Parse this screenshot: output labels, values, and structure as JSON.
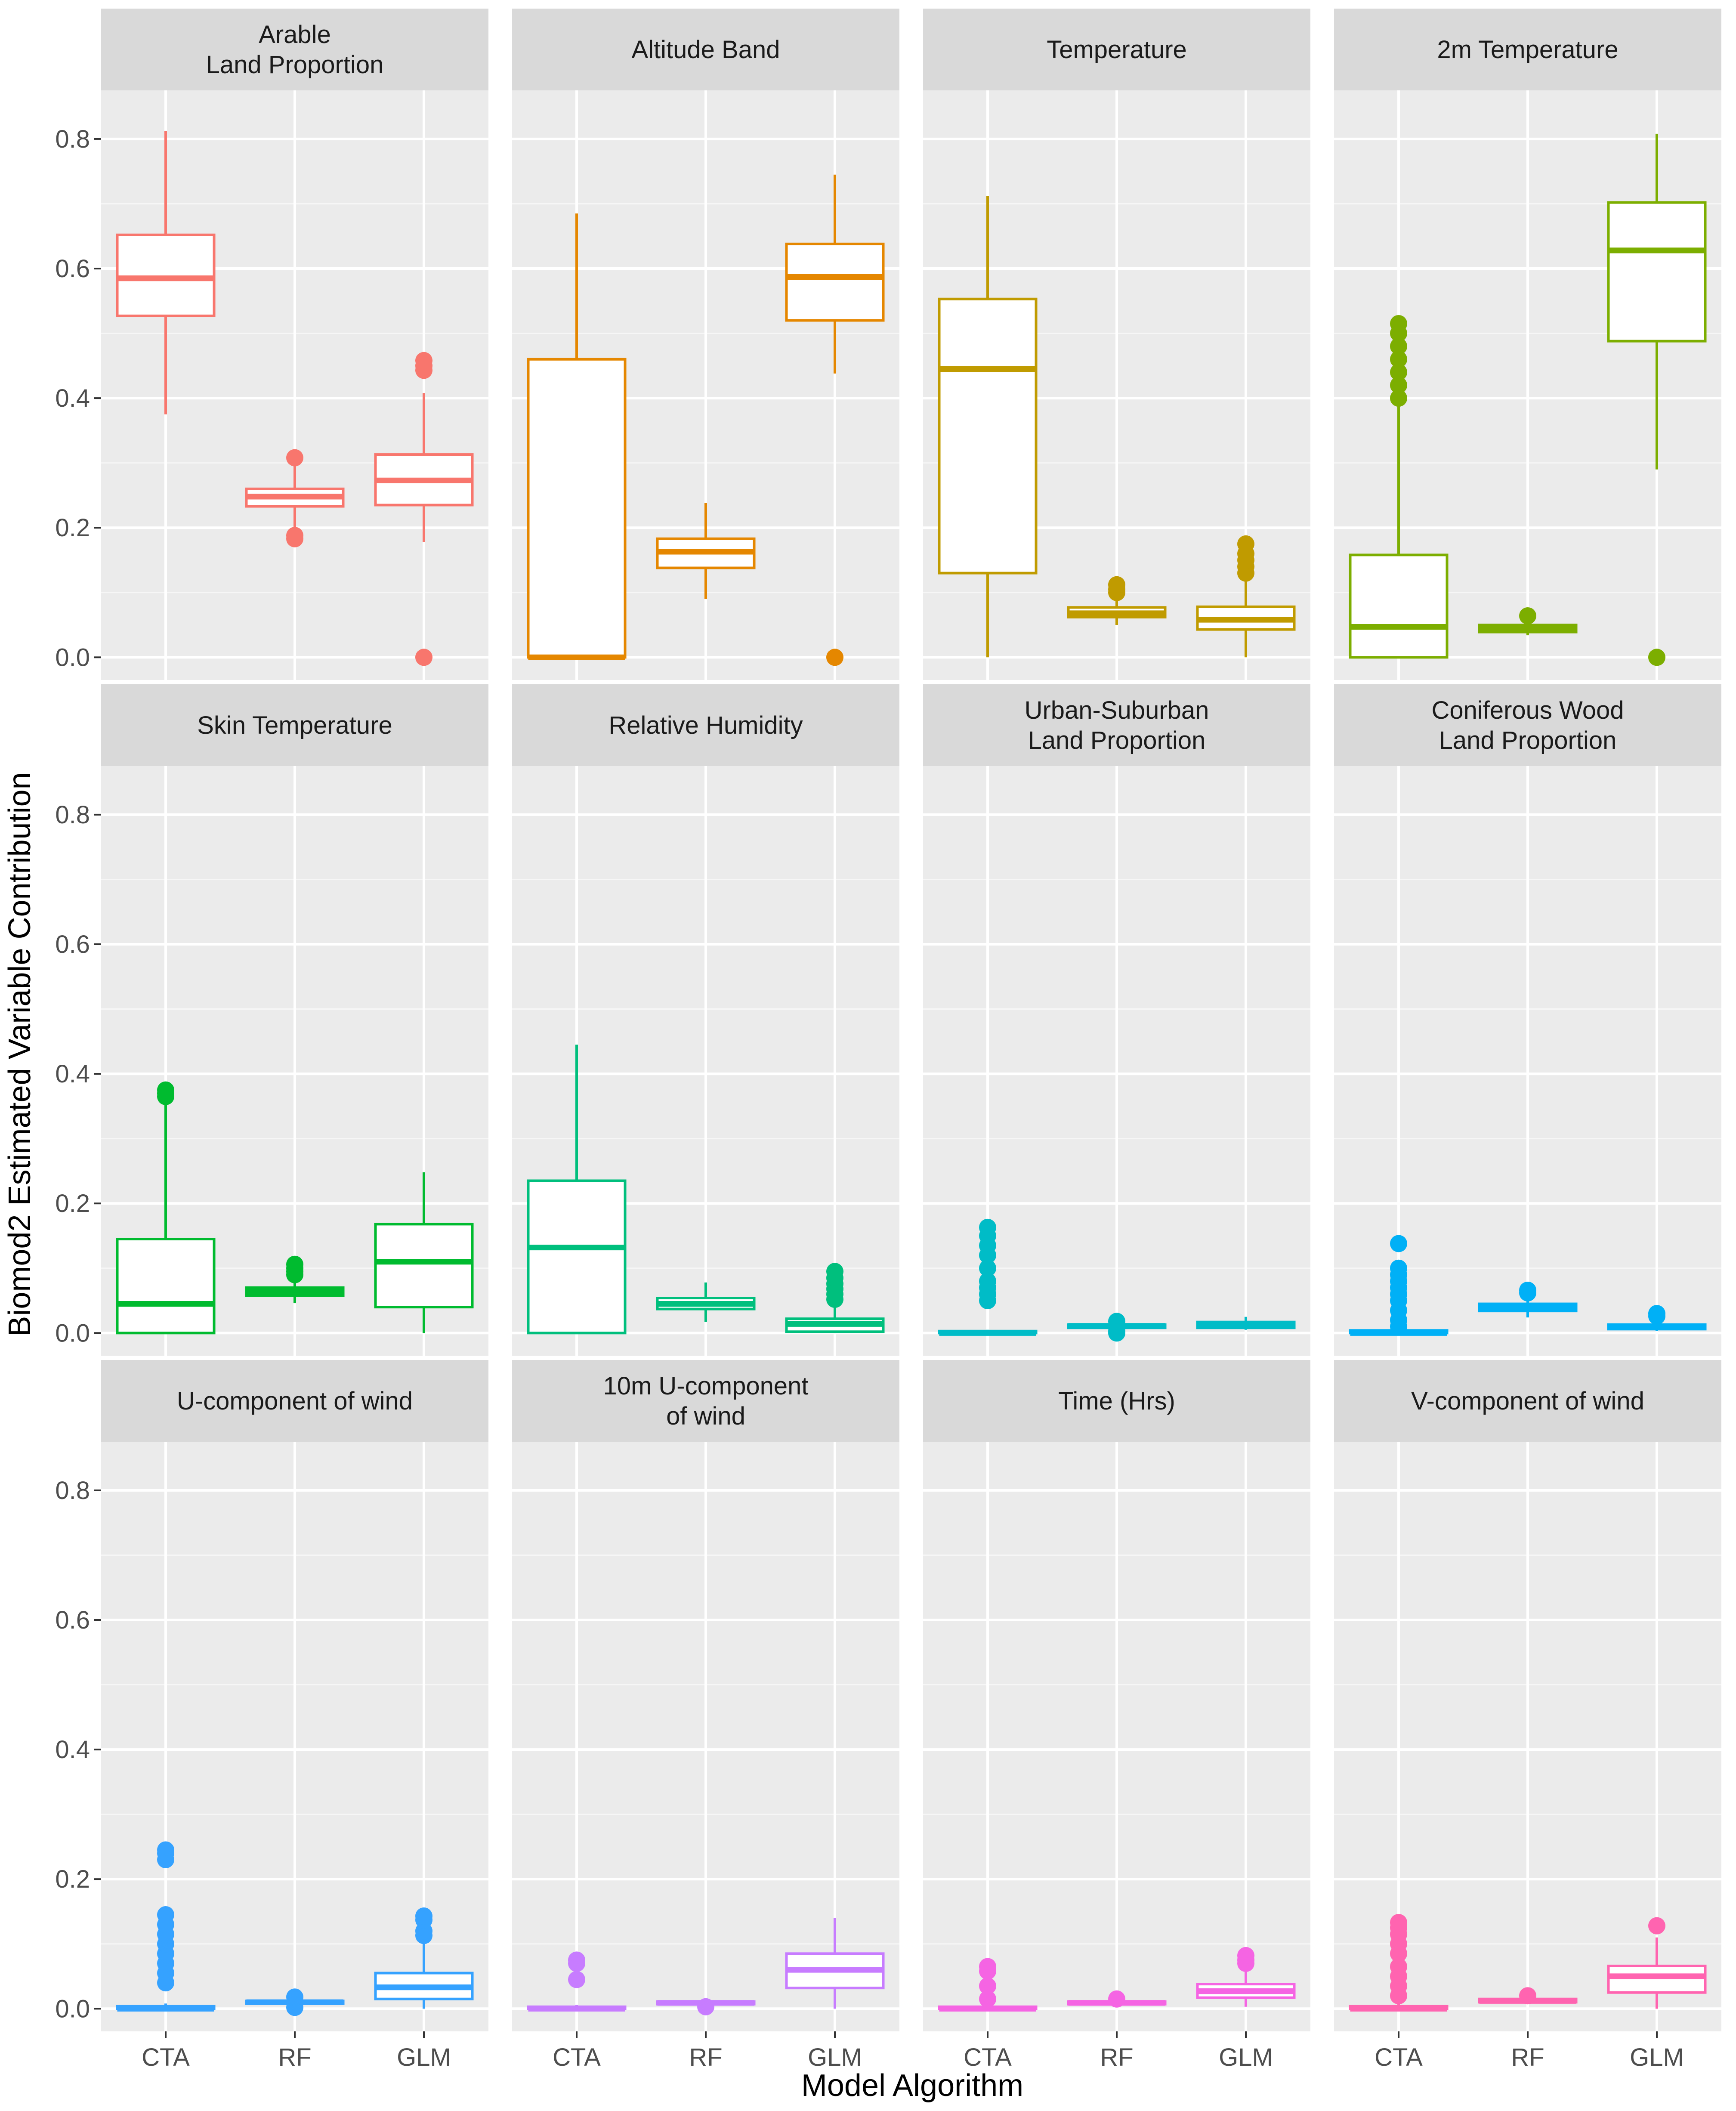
{
  "chart_data": {
    "type": "boxplot",
    "title": "",
    "xlabel": "Model Algorithm",
    "ylabel": "Biomod2 Estimated Variable Contribution",
    "ylim": [
      -0.035,
      0.875
    ],
    "yticks": [
      0.0,
      0.2,
      0.4,
      0.6,
      0.8
    ],
    "ytick_labels": [
      "0.0",
      "0.2",
      "0.4",
      "0.6",
      "0.8"
    ],
    "categories": [
      "CTA",
      "RF",
      "GLM"
    ],
    "grid": true,
    "legend": "none",
    "facets": [
      {
        "label": "Arable\nLand Proportion",
        "color": "#F8766D",
        "boxes": [
          {
            "algorithm": "CTA",
            "min": 0.375,
            "q1": 0.527,
            "median": 0.585,
            "q3": 0.652,
            "max": 0.812,
            "outliers": []
          },
          {
            "algorithm": "RF",
            "min": 0.198,
            "q1": 0.233,
            "median": 0.248,
            "q3": 0.26,
            "max": 0.295,
            "outliers": [
              0.183,
              0.188,
              0.308
            ]
          },
          {
            "algorithm": "GLM",
            "min": 0.178,
            "q1": 0.235,
            "median": 0.273,
            "q3": 0.313,
            "max": 0.408,
            "outliers": [
              0.0,
              0.443,
              0.45,
              0.458
            ]
          }
        ]
      },
      {
        "label": "Altitude Band",
        "color": "#E58700",
        "boxes": [
          {
            "algorithm": "CTA",
            "min": 0.0,
            "q1": 0.0,
            "median": 0.0,
            "q3": 0.46,
            "max": 0.685,
            "outliers": []
          },
          {
            "algorithm": "RF",
            "min": 0.09,
            "q1": 0.138,
            "median": 0.163,
            "q3": 0.183,
            "max": 0.238,
            "outliers": []
          },
          {
            "algorithm": "GLM",
            "min": 0.438,
            "q1": 0.52,
            "median": 0.587,
            "q3": 0.638,
            "max": 0.745,
            "outliers": [
              0.0
            ]
          }
        ]
      },
      {
        "label": "Temperature",
        "color": "#C09B00",
        "boxes": [
          {
            "algorithm": "CTA",
            "min": 0.0,
            "q1": 0.13,
            "median": 0.445,
            "q3": 0.553,
            "max": 0.712,
            "outliers": []
          },
          {
            "algorithm": "RF",
            "min": 0.05,
            "q1": 0.062,
            "median": 0.068,
            "q3": 0.077,
            "max": 0.092,
            "outliers": [
              0.1,
              0.105,
              0.112
            ]
          },
          {
            "algorithm": "GLM",
            "min": 0.0,
            "q1": 0.043,
            "median": 0.058,
            "q3": 0.078,
            "max": 0.122,
            "outliers": [
              0.13,
              0.14,
              0.15,
              0.16,
              0.175
            ]
          }
        ]
      },
      {
        "label": "2m Temperature",
        "color": "#7CAE00",
        "boxes": [
          {
            "algorithm": "CTA",
            "min": 0.0,
            "q1": 0.0,
            "median": 0.047,
            "q3": 0.158,
            "max": 0.39,
            "outliers": [
              0.4,
              0.42,
              0.44,
              0.46,
              0.48,
              0.5,
              0.515
            ]
          },
          {
            "algorithm": "RF",
            "min": 0.034,
            "q1": 0.039,
            "median": 0.045,
            "q3": 0.05,
            "max": 0.058,
            "outliers": [
              0.064
            ]
          },
          {
            "algorithm": "GLM",
            "min": 0.29,
            "q1": 0.488,
            "median": 0.628,
            "q3": 0.702,
            "max": 0.808,
            "outliers": [
              0.0
            ]
          }
        ]
      },
      {
        "label": "Skin Temperature",
        "color": "#00BB2F",
        "boxes": [
          {
            "algorithm": "CTA",
            "min": 0.0,
            "q1": 0.0,
            "median": 0.045,
            "q3": 0.145,
            "max": 0.355,
            "outliers": [
              0.365,
              0.37,
              0.375
            ]
          },
          {
            "algorithm": "RF",
            "min": 0.046,
            "q1": 0.058,
            "median": 0.065,
            "q3": 0.07,
            "max": 0.085,
            "outliers": [
              0.09,
              0.095,
              0.1,
              0.106
            ]
          },
          {
            "algorithm": "GLM",
            "min": 0.0,
            "q1": 0.04,
            "median": 0.11,
            "q3": 0.168,
            "max": 0.248,
            "outliers": []
          }
        ]
      },
      {
        "label": "Relative Humidity",
        "color": "#00BF7D",
        "boxes": [
          {
            "algorithm": "CTA",
            "min": 0.0,
            "q1": 0.0,
            "median": 0.132,
            "q3": 0.235,
            "max": 0.445,
            "outliers": []
          },
          {
            "algorithm": "RF",
            "min": 0.017,
            "q1": 0.037,
            "median": 0.045,
            "q3": 0.054,
            "max": 0.078,
            "outliers": []
          },
          {
            "algorithm": "GLM",
            "min": 0.0,
            "q1": 0.002,
            "median": 0.014,
            "q3": 0.022,
            "max": 0.045,
            "outliers": [
              0.052,
              0.06,
              0.068,
              0.076,
              0.085,
              0.095
            ]
          }
        ]
      },
      {
        "label": "Urban-Suburban\nLand Proportion",
        "color": "#00BCC7",
        "boxes": [
          {
            "algorithm": "CTA",
            "min": 0.0,
            "q1": 0.0,
            "median": 0.0,
            "q3": 0.003,
            "max": 0.005,
            "outliers": [
              0.05,
              0.06,
              0.07,
              0.08,
              0.1,
              0.12,
              0.135,
              0.15,
              0.163
            ]
          },
          {
            "algorithm": "RF",
            "min": 0.005,
            "q1": 0.008,
            "median": 0.011,
            "q3": 0.013,
            "max": 0.016,
            "outliers": [
              0.0,
              0.003,
              0.018
            ]
          },
          {
            "algorithm": "GLM",
            "min": 0.005,
            "q1": 0.008,
            "median": 0.012,
            "q3": 0.017,
            "max": 0.025,
            "outliers": []
          }
        ]
      },
      {
        "label": "Coniferous Wood\nLand Proportion",
        "color": "#00B0F6",
        "boxes": [
          {
            "algorithm": "CTA",
            "min": 0.0,
            "q1": 0.0,
            "median": 0.0,
            "q3": 0.004,
            "max": 0.008,
            "outliers": [
              0.01,
              0.02,
              0.035,
              0.05,
              0.06,
              0.07,
              0.08,
              0.09,
              0.1,
              0.138
            ]
          },
          {
            "algorithm": "RF",
            "min": 0.024,
            "q1": 0.034,
            "median": 0.039,
            "q3": 0.045,
            "max": 0.055,
            "outliers": [
              0.062,
              0.066
            ]
          },
          {
            "algorithm": "GLM",
            "min": 0.003,
            "q1": 0.006,
            "median": 0.009,
            "q3": 0.013,
            "max": 0.02,
            "outliers": [
              0.026,
              0.03
            ]
          }
        ]
      },
      {
        "label": "U-component of wind",
        "color": "#35A2FF",
        "boxes": [
          {
            "algorithm": "CTA",
            "min": 0.0,
            "q1": 0.0,
            "median": 0.0,
            "q3": 0.004,
            "max": 0.008,
            "outliers": [
              0.04,
              0.055,
              0.07,
              0.085,
              0.1,
              0.115,
              0.13,
              0.145,
              0.23,
              0.24,
              0.245
            ]
          },
          {
            "algorithm": "RF",
            "min": 0.004,
            "q1": 0.008,
            "median": 0.01,
            "q3": 0.012,
            "max": 0.015,
            "outliers": [
              0.002,
              0.018
            ]
          },
          {
            "algorithm": "GLM",
            "min": 0.0,
            "q1": 0.015,
            "median": 0.033,
            "q3": 0.055,
            "max": 0.1,
            "outliers": [
              0.113,
              0.12,
              0.137,
              0.143
            ]
          }
        ]
      },
      {
        "label": "10m U-component\nof wind",
        "color": "#C77CFF",
        "boxes": [
          {
            "algorithm": "CTA",
            "min": 0.0,
            "q1": 0.0,
            "median": 0.0,
            "q3": 0.003,
            "max": 0.006,
            "outliers": [
              0.045,
              0.07,
              0.075
            ]
          },
          {
            "algorithm": "RF",
            "min": 0.005,
            "q1": 0.007,
            "median": 0.009,
            "q3": 0.011,
            "max": 0.013,
            "outliers": [
              0.003
            ]
          },
          {
            "algorithm": "GLM",
            "min": 0.0,
            "q1": 0.032,
            "median": 0.06,
            "q3": 0.085,
            "max": 0.14,
            "outliers": []
          }
        ]
      },
      {
        "label": "Time (Hrs)",
        "color": "#F564E3",
        "boxes": [
          {
            "algorithm": "CTA",
            "min": 0.0,
            "q1": 0.0,
            "median": 0.0,
            "q3": 0.003,
            "max": 0.006,
            "outliers": [
              0.015,
              0.035,
              0.058,
              0.065
            ]
          },
          {
            "algorithm": "RF",
            "min": 0.005,
            "q1": 0.007,
            "median": 0.009,
            "q3": 0.011,
            "max": 0.013,
            "outliers": [
              0.015
            ]
          },
          {
            "algorithm": "GLM",
            "min": 0.003,
            "q1": 0.017,
            "median": 0.027,
            "q3": 0.038,
            "max": 0.06,
            "outliers": [
              0.07,
              0.075,
              0.082
            ]
          }
        ]
      },
      {
        "label": "V-component of wind",
        "color": "#FF64B0",
        "boxes": [
          {
            "algorithm": "CTA",
            "min": 0.0,
            "q1": 0.0,
            "median": 0.0,
            "q3": 0.004,
            "max": 0.008,
            "outliers": [
              0.02,
              0.035,
              0.05,
              0.065,
              0.085,
              0.1,
              0.115,
              0.125,
              0.133
            ]
          },
          {
            "algorithm": "RF",
            "min": 0.008,
            "q1": 0.01,
            "median": 0.012,
            "q3": 0.015,
            "max": 0.018,
            "outliers": [
              0.02
            ]
          },
          {
            "algorithm": "GLM",
            "min": 0.0,
            "q1": 0.025,
            "median": 0.05,
            "q3": 0.066,
            "max": 0.11,
            "outliers": [
              0.128
            ]
          }
        ]
      }
    ]
  }
}
